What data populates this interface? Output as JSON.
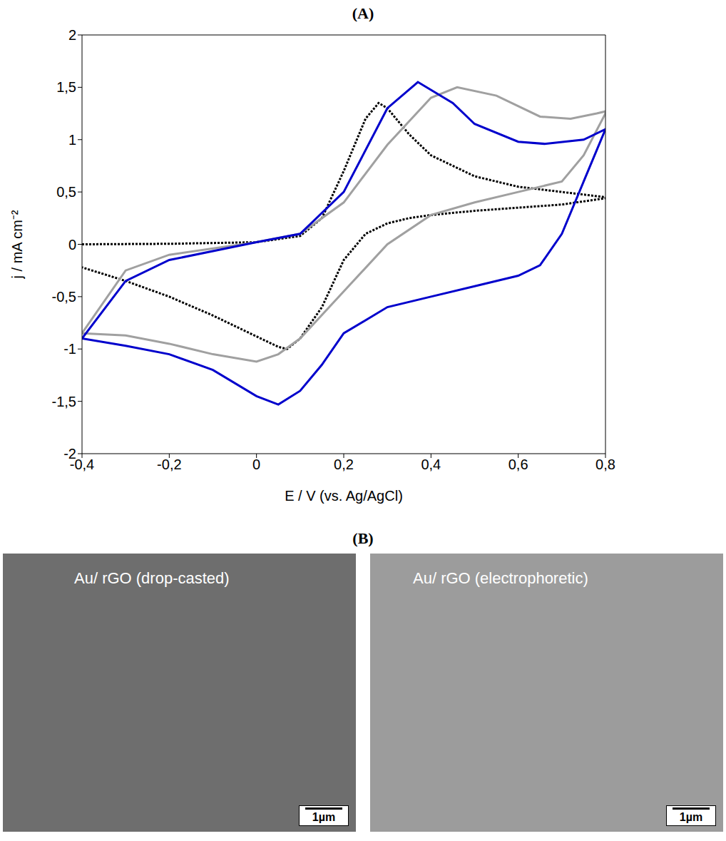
{
  "chart_data": {
    "type": "line",
    "title": "(A)",
    "x_label": "E / V (vs. Ag/AgCl)",
    "y_label": "j / mA cm⁻²",
    "xlim": [
      -0.4,
      0.8
    ],
    "xticks": [
      {
        "value": -0.4,
        "label": "-0,4"
      },
      {
        "value": -0.2,
        "label": "-0,2"
      },
      0,
      {
        "value": 0.2,
        "label": "0,2"
      },
      {
        "value": 0.4,
        "label": "0,4"
      },
      {
        "value": 0.6,
        "label": "0,6"
      },
      {
        "value": 0.8,
        "label": "0,8"
      }
    ],
    "ylim": [
      -2,
      2
    ],
    "yticks": [
      -2,
      {
        "value": -1.5,
        "label": "-1,5"
      },
      -1,
      {
        "value": -0.5,
        "label": "-0,5"
      },
      0,
      {
        "value": 0.5,
        "label": "0,5"
      },
      1,
      {
        "value": 1.5,
        "label": "1,5"
      },
      2
    ],
    "series": [
      {
        "color": "#000000",
        "line_style": "dotted",
        "x": [
          -0.4,
          -0.2,
          0,
          0.1,
          0.15,
          0.2,
          0.25,
          0.28,
          0.3,
          0.35,
          0.4,
          0.5,
          0.6,
          0.7,
          0.8,
          0.8,
          0.7,
          0.6,
          0.5,
          0.4,
          0.35,
          0.3,
          0.25,
          0.2,
          0.15,
          0.1,
          0.07,
          0.05,
          0,
          -0.1,
          -0.2,
          -0.3,
          -0.4
        ],
        "values": [
          0,
          0.005,
          0.02,
          0.08,
          0.25,
          0.7,
          1.2,
          1.35,
          1.3,
          1.05,
          0.85,
          0.65,
          0.55,
          0.5,
          0.45,
          0.44,
          0.38,
          0.35,
          0.32,
          0.28,
          0.25,
          0.2,
          0.1,
          -0.15,
          -0.6,
          -0.9,
          -1.0,
          -0.98,
          -0.88,
          -0.68,
          -0.5,
          -0.35,
          -0.22
        ]
      },
      {
        "color": "#a0a0a0",
        "line_style": "solid",
        "x": [
          -0.4,
          -0.3,
          -0.2,
          0,
          0.1,
          0.2,
          0.3,
          0.4,
          0.46,
          0.55,
          0.65,
          0.72,
          0.78,
          0.8,
          0.8,
          0.75,
          0.7,
          0.6,
          0.5,
          0.4,
          0.3,
          0.2,
          0.1,
          0.05,
          0,
          -0.1,
          -0.2,
          -0.3,
          -0.4
        ],
        "values": [
          -0.85,
          -0.25,
          -0.1,
          0.02,
          0.1,
          0.4,
          0.95,
          1.4,
          1.5,
          1.42,
          1.22,
          1.2,
          1.25,
          1.27,
          1.25,
          0.85,
          0.6,
          0.5,
          0.4,
          0.28,
          0.0,
          -0.45,
          -0.9,
          -1.05,
          -1.12,
          -1.05,
          -0.95,
          -0.87,
          -0.85
        ]
      },
      {
        "color": "#0000cc",
        "line_style": "solid",
        "x": [
          -0.4,
          -0.3,
          -0.2,
          0,
          0.1,
          0.2,
          0.3,
          0.37,
          0.45,
          0.5,
          0.6,
          0.66,
          0.75,
          0.8,
          0.8,
          0.75,
          0.7,
          0.65,
          0.6,
          0.5,
          0.4,
          0.3,
          0.2,
          0.15,
          0.1,
          0.05,
          0,
          -0.1,
          -0.2,
          -0.3,
          -0.4
        ],
        "values": [
          -0.9,
          -0.35,
          -0.15,
          0.02,
          0.1,
          0.5,
          1.3,
          1.55,
          1.35,
          1.15,
          0.98,
          0.96,
          1.0,
          1.1,
          1.1,
          0.6,
          0.1,
          -0.2,
          -0.3,
          -0.4,
          -0.5,
          -0.6,
          -0.85,
          -1.15,
          -1.4,
          -1.53,
          -1.45,
          -1.2,
          -1.05,
          -0.97,
          -0.9
        ]
      }
    ]
  },
  "figure_b": {
    "title": "(B)",
    "images": [
      {
        "title": "Au/ rGO (drop-casted)",
        "scale_bar": "1µm"
      },
      {
        "title": "Au/ rGO (electrophoretic)",
        "scale_bar": "1µm"
      }
    ]
  }
}
